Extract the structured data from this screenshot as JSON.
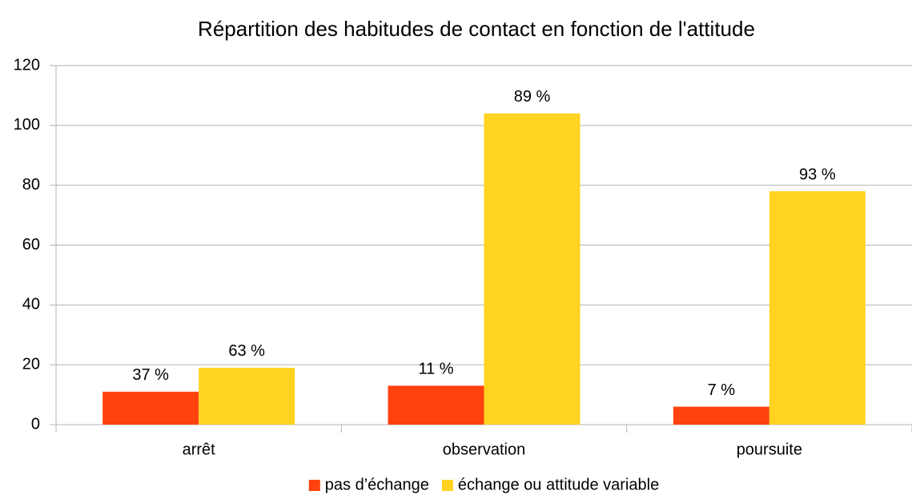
{
  "chart_data": {
    "type": "bar",
    "title": "Répartition des habitudes de contact en fonction de l'attitude",
    "categories": [
      "arrêt",
      "observation",
      "poursuite"
    ],
    "series": [
      {
        "name": "pas d’échange",
        "color": "#ff420e",
        "values": [
          11,
          13,
          6
        ],
        "value_labels": [
          "37 %",
          "11 %",
          "7 %"
        ]
      },
      {
        "name": "échange ou attitude variable",
        "color": "#ffd320",
        "values": [
          19,
          104,
          78
        ],
        "value_labels": [
          "63 %",
          "89 %",
          "93 %"
        ]
      }
    ],
    "ylim": [
      0,
      120
    ],
    "yticks": [
      0,
      20,
      40,
      60,
      80,
      100,
      120
    ],
    "grid": true,
    "legend": "bottom"
  }
}
